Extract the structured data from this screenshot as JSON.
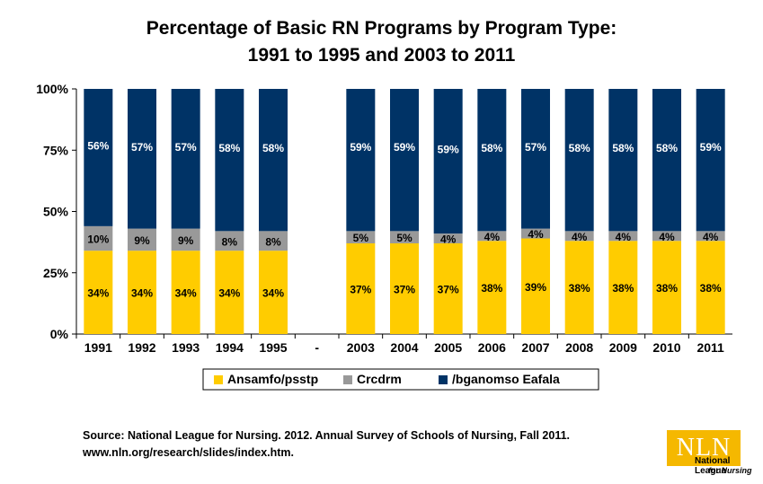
{
  "chart_data": {
    "type": "bar",
    "stacked": true,
    "title": "Percentage of Basic RN Programs by Program Type:",
    "subtitle": "1991 to 1995 and 2003 to 2011",
    "categories": [
      "1991",
      "1992",
      "1993",
      "1994",
      "1995",
      "-",
      "2003",
      "2004",
      "2005",
      "2006",
      "2007",
      "2008",
      "2009",
      "2010",
      "2011"
    ],
    "series": [
      {
        "name": "Ansamfo/psstp",
        "color": "#FFCC00",
        "values": [
          34,
          34,
          34,
          34,
          34,
          null,
          37,
          37,
          37,
          38,
          39,
          38,
          38,
          38,
          38
        ],
        "labels": [
          "34%",
          "34%",
          "34%",
          "34%",
          "34%",
          "",
          "37%",
          "37%",
          "37%",
          "38%",
          "39%",
          "38%",
          "38%",
          "38%",
          "38%"
        ]
      },
      {
        "name": "Crcdrm",
        "color": "#999999",
        "values": [
          10,
          9,
          9,
          8,
          8,
          null,
          5,
          5,
          4,
          4,
          4,
          4,
          4,
          4,
          4
        ],
        "labels": [
          "10%",
          "9%",
          "9%",
          "8%",
          "8%",
          "",
          "5%",
          "5%",
          "4%",
          "4%",
          "4%",
          "4%",
          "4%",
          "4%",
          "4%"
        ]
      },
      {
        "name": "/bganomso Eafala",
        "color": "#003366",
        "values": [
          56,
          57,
          57,
          58,
          58,
          null,
          59,
          59,
          59,
          58,
          57,
          58,
          58,
          58,
          59
        ],
        "labels": [
          "56%",
          "57%",
          "57%",
          "58%",
          "58%",
          "",
          "59%",
          "59%",
          "59%",
          "58%",
          "57%",
          "58%",
          "58%",
          "58%",
          "59%"
        ]
      }
    ],
    "yticks": [
      "0%",
      "25%",
      "50%",
      "75%",
      "100%"
    ],
    "ylim": [
      0,
      100
    ],
    "grid": false,
    "legend_position": "bottom"
  },
  "source": {
    "line1": "Source: National League for Nursing. 2012. Annual Survey of Schools of Nursing, Fall 2011.",
    "line2": "www.nln.org/research/slides/index.htm."
  },
  "logo": {
    "mark": "NLN",
    "line1": "National League",
    "line2": "for Nursing",
    "color": "#F5B800"
  }
}
